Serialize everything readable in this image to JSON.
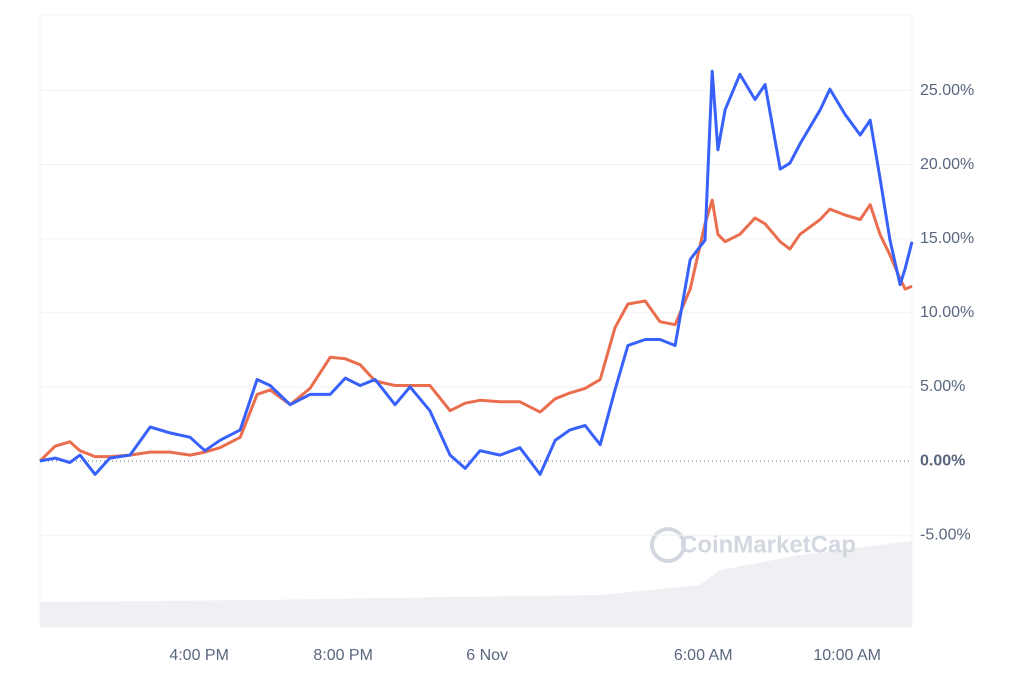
{
  "chart_data": {
    "type": "line",
    "watermark": "CoinMarketCap",
    "x": [
      11.58,
      12.0,
      12.41,
      12.69,
      13.11,
      13.52,
      14.08,
      14.64,
      15.19,
      15.75,
      16.16,
      16.58,
      17.14,
      17.61,
      17.97,
      18.53,
      19.08,
      19.64,
      20.06,
      20.47,
      20.89,
      21.44,
      21.86,
      22.41,
      22.97,
      23.39,
      23.8,
      24.36,
      24.91,
      25.47,
      25.89,
      26.3,
      26.72,
      27.14,
      27.55,
      27.91,
      28.39,
      28.8,
      29.22,
      29.64,
      30.05,
      30.25,
      30.41,
      30.61,
      31.02,
      31.44,
      31.72,
      32.14,
      32.41,
      32.69,
      33.25,
      33.52,
      33.94,
      34.36,
      34.64,
      34.91,
      35.19,
      35.47,
      35.61,
      35.8
    ],
    "series": [
      {
        "color": "#3861fb",
        "values": [
          0,
          0.2,
          -0.1,
          0.4,
          -0.9,
          0.2,
          0.4,
          2.3,
          1.9,
          1.6,
          0.7,
          1.4,
          2.1,
          5.5,
          5.1,
          3.8,
          4.5,
          4.5,
          5.6,
          5.1,
          5.5,
          3.8,
          5.0,
          3.4,
          0.4,
          -0.5,
          0.7,
          0.4,
          0.9,
          -0.9,
          1.4,
          2.1,
          2.4,
          1.1,
          4.8,
          7.8,
          8.2,
          8.2,
          7.8,
          13.6,
          14.9,
          26.3,
          21.0,
          23.7,
          26.1,
          24.4,
          25.4,
          19.7,
          20.1,
          21.4,
          23.7,
          25.1,
          23.4,
          22.0,
          23.0,
          19.1,
          14.9,
          11.9,
          13.0,
          14.8
        ]
      },
      {
        "color": "#ea6e4e",
        "values": [
          0,
          1.0,
          1.3,
          0.7,
          0.3,
          0.3,
          0.4,
          0.6,
          0.6,
          0.4,
          0.6,
          0.9,
          1.6,
          4.5,
          4.8,
          3.8,
          4.9,
          7.0,
          6.9,
          6.5,
          5.4,
          5.1,
          5.1,
          5.1,
          3.4,
          3.9,
          4.1,
          4.0,
          4.0,
          3.3,
          4.2,
          4.6,
          4.9,
          5.5,
          9.0,
          10.6,
          10.8,
          9.4,
          9.2,
          11.6,
          16.0,
          17.6,
          15.3,
          14.8,
          15.3,
          16.4,
          16.0,
          14.8,
          14.3,
          15.3,
          16.3,
          17.0,
          16.6,
          16.3,
          17.3,
          15.3,
          13.9,
          12.3,
          11.6,
          11.8
        ]
      }
    ],
    "xlim": [
      11.58,
      35.8
    ],
    "xticks": [
      {
        "value": 16,
        "label": "4:00 PM"
      },
      {
        "value": 20,
        "label": "8:00 PM"
      },
      {
        "value": 24,
        "label": "6 Nov"
      },
      {
        "value": 30,
        "label": "6:00 AM"
      },
      {
        "value": 34,
        "label": "10:00 AM"
      }
    ],
    "ylim": [
      -11.2,
      30.1
    ],
    "yticks": [
      {
        "value": -5,
        "label": "-5.00%"
      },
      {
        "value": 0,
        "label": "0.00%"
      },
      {
        "value": 5,
        "label": "5.00%"
      },
      {
        "value": 10,
        "label": "10.00%"
      },
      {
        "value": 15,
        "label": "15.00%"
      },
      {
        "value": 20,
        "label": "20.00%"
      },
      {
        "value": 25,
        "label": "25.00%"
      }
    ],
    "grid": true
  }
}
